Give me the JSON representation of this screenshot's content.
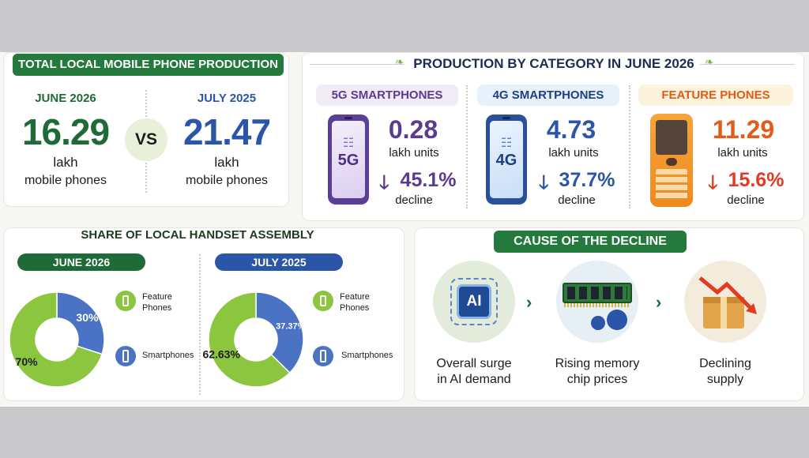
{
  "colors": {
    "green": "#1f6b37",
    "blue": "#2a55a8",
    "purple": "#5b3a91",
    "orange": "#e35b16",
    "red": "#e23b24",
    "light_green": "#8cc63f",
    "mid_blue": "#4a73c4"
  },
  "production": {
    "title": "TOTAL LOCAL MOBILE PHONE PRODUCTION",
    "june_label": "JUNE 2026",
    "june_value": "16.29",
    "june_unit": "lakh",
    "june_desc": "mobile phones",
    "vs": "VS",
    "july_label": "JULY 2025",
    "july_value": "21.47",
    "july_unit": "lakh",
    "july_desc": "mobile phones"
  },
  "category": {
    "title": "PRODUCTION BY CATEGORY IN JUNE 2026",
    "items": [
      {
        "name": "5G SMARTPHONES",
        "icon": "smartphone-5g-icon",
        "screen_text": "5G",
        "value": "0.28",
        "unit": "lakh units",
        "change": "45.1%",
        "change_label": "decline"
      },
      {
        "name": "4G SMARTPHONES",
        "icon": "smartphone-4g-icon",
        "screen_text": "4G",
        "value": "4.73",
        "unit": "lakh units",
        "change": "37.7%",
        "change_label": "decline"
      },
      {
        "name": "FEATURE PHONES",
        "icon": "feature-phone-icon",
        "value": "11.29",
        "unit": "lakh units",
        "change": "15.6%",
        "change_label": "decline"
      }
    ]
  },
  "share": {
    "title": "SHARE OF LOCAL HANDSET ASSEMBLY",
    "legend_feature": "Feature Phones",
    "legend_smart": "Smartphones",
    "june": {
      "label": "JUNE 2026",
      "feature_label": "70%",
      "smart_label": "30%"
    },
    "july": {
      "label": "JULY 2025",
      "feature_label": "62.63%",
      "smart_label": "37.37%"
    }
  },
  "chart_data": [
    {
      "type": "pie",
      "title": "JUNE 2026",
      "categories": [
        "Feature Phones",
        "Smartphones"
      ],
      "values": [
        70,
        30
      ]
    },
    {
      "type": "pie",
      "title": "JULY 2025",
      "categories": [
        "Feature Phones",
        "Smartphones"
      ],
      "values": [
        62.63,
        37.37
      ]
    }
  ],
  "cause": {
    "title": "CAUSE OF THE DECLINE",
    "ai_icon_text": "AI",
    "items": [
      {
        "line1": "Overall surge",
        "line2": "in AI demand",
        "icon": "ai-chip-icon"
      },
      {
        "line1": "Rising memory",
        "line2": "chip prices",
        "icon": "memory-chip-icon"
      },
      {
        "line1": "Declining",
        "line2": "supply",
        "icon": "declining-box-icon"
      }
    ]
  }
}
